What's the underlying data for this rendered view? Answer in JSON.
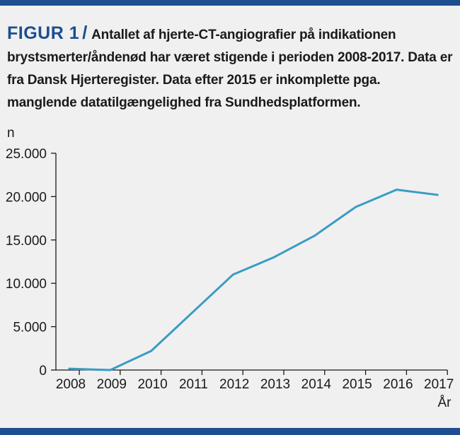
{
  "figure": {
    "label": "FIGUR 1",
    "separator": "/",
    "caption": "Antallet af hjerte-CT-angiografier på indikationen brystsmerter/åndenød har været stigende i perioden 2008-2017. Data er fra Dansk Hjerteregister. Data efter 2015 er inkomplette pga. manglende datatilgængelighed fra Sundhedsplatformen."
  },
  "colors": {
    "accent": "#1d4e8f",
    "line": "#3a9cc4",
    "axis": "#1a1a1a",
    "background": "#f0f0f0"
  },
  "chart_data": {
    "type": "line",
    "title": "",
    "ylabel": "n",
    "xlabel": "År",
    "x": [
      "2008",
      "2009",
      "2010",
      "2011",
      "2012",
      "2013",
      "2014",
      "2015",
      "2016",
      "2017"
    ],
    "series": [
      {
        "name": "Hjerte-CT-angiografier",
        "values": [
          150,
          0,
          2200,
          6600,
          11000,
          13000,
          15500,
          18800,
          20800,
          20200
        ]
      }
    ],
    "ylim": [
      0,
      25000
    ],
    "yticks": [
      0,
      5000,
      10000,
      15000,
      20000,
      25000
    ],
    "ytick_labels": [
      "0",
      "5.000",
      "10.000",
      "15.000",
      "20.000",
      "25.000"
    ],
    "grid": false,
    "legend": "none"
  }
}
